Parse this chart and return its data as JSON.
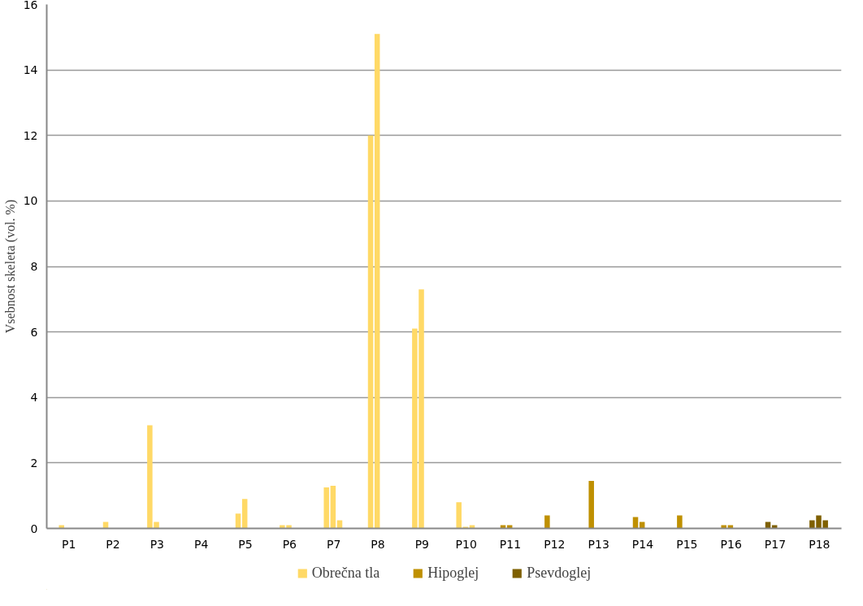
{
  "chart_data": {
    "type": "bar",
    "ylabel": "Vsebnost skeleta (vol. %)",
    "categories": [
      "P1",
      "P2",
      "P3",
      "P4",
      "P5",
      "P6",
      "P7",
      "P8",
      "P9",
      "P10",
      "P11",
      "P12",
      "P13",
      "P14",
      "P15",
      "P16",
      "P17",
      "P18"
    ],
    "series": [
      {
        "name": "Obrečna tla",
        "color": "#ffd966",
        "values": [
          0.1,
          0.2,
          3.15,
          null,
          0.45,
          0.1,
          1.25,
          12.0,
          6.1,
          0.8,
          null,
          null,
          null,
          null,
          null,
          null,
          null,
          null
        ]
      },
      {
        "name": "Hipoglej",
        "color": "#bf9000",
        "values": [
          null,
          null,
          null,
          null,
          null,
          null,
          null,
          null,
          null,
          null,
          0.1,
          0.4,
          1.45,
          0.35,
          0.4,
          0.1,
          null,
          null
        ]
      },
      {
        "name": "Psevdoglej",
        "color": "#7f6000",
        "values": [
          null,
          null,
          null,
          null,
          null,
          null,
          null,
          null,
          null,
          null,
          null,
          null,
          null,
          null,
          null,
          null,
          0.2,
          0.25
        ]
      },
      {
        "color": "#ffd966",
        "values": [
          null,
          null,
          0.2,
          null,
          0.9,
          0.1,
          1.3,
          15.1,
          7.3,
          0.05,
          null,
          null,
          null,
          null,
          null,
          null,
          null,
          null
        ]
      },
      {
        "color": "#bf9000",
        "values": [
          null,
          null,
          null,
          null,
          null,
          null,
          null,
          null,
          null,
          null,
          0.1,
          null,
          null,
          0.2,
          null,
          0.1,
          null,
          null
        ]
      },
      {
        "color": "#7f6000",
        "values": [
          null,
          null,
          null,
          null,
          null,
          null,
          null,
          null,
          null,
          null,
          null,
          null,
          null,
          null,
          null,
          null,
          0.1,
          0.4
        ]
      },
      {
        "color": "#ffd966",
        "values": [
          null,
          null,
          null,
          null,
          null,
          null,
          0.25,
          null,
          null,
          0.1,
          null,
          null,
          null,
          null,
          null,
          null,
          null,
          null
        ]
      },
      {
        "color": "#7f6000",
        "values": [
          null,
          null,
          null,
          null,
          null,
          null,
          null,
          null,
          null,
          null,
          null,
          null,
          null,
          null,
          null,
          null,
          null,
          0.25
        ]
      }
    ],
    "ylim": [
      0,
      16
    ],
    "yticks": [
      0,
      2,
      4,
      6,
      8,
      10,
      12,
      14,
      16
    ],
    "grid": "y",
    "legend": "bottom"
  }
}
